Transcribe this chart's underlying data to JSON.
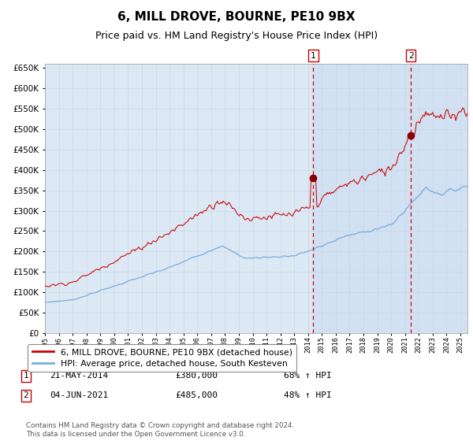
{
  "title": "6, MILL DROVE, BOURNE, PE10 9BX",
  "subtitle": "Price paid vs. HM Land Registry's House Price Index (HPI)",
  "title_fontsize": 11,
  "subtitle_fontsize": 9,
  "background_color": "#ffffff",
  "plot_bg_color": "#dce9f5",
  "grid_color": "#c8d8e8",
  "red_line_color": "#cc0000",
  "blue_line_color": "#7aaadd",
  "vline_color": "#cc0000",
  "marker_color": "#880000",
  "shade_color": "#c8d8f0",
  "ylim": [
    0,
    660000
  ],
  "yticks": [
    0,
    50000,
    100000,
    150000,
    200000,
    250000,
    300000,
    350000,
    400000,
    450000,
    500000,
    550000,
    600000,
    650000
  ],
  "sale1_date": 2014.38,
  "sale1_price": 380000,
  "sale2_date": 2021.42,
  "sale2_price": 485000,
  "legend_label_red": "6, MILL DROVE, BOURNE, PE10 9BX (detached house)",
  "legend_label_blue": "HPI: Average price, detached house, South Kesteven",
  "annotation1_date": "21-MAY-2014",
  "annotation1_price": "£380,000",
  "annotation1_hpi": "68% ↑ HPI",
  "annotation2_date": "04-JUN-2021",
  "annotation2_price": "£485,000",
  "annotation2_hpi": "48% ↑ HPI",
  "footer": "Contains HM Land Registry data © Crown copyright and database right 2024.\nThis data is licensed under the Open Government Licence v3.0.",
  "xmin": 1995.0,
  "xmax": 2025.5
}
